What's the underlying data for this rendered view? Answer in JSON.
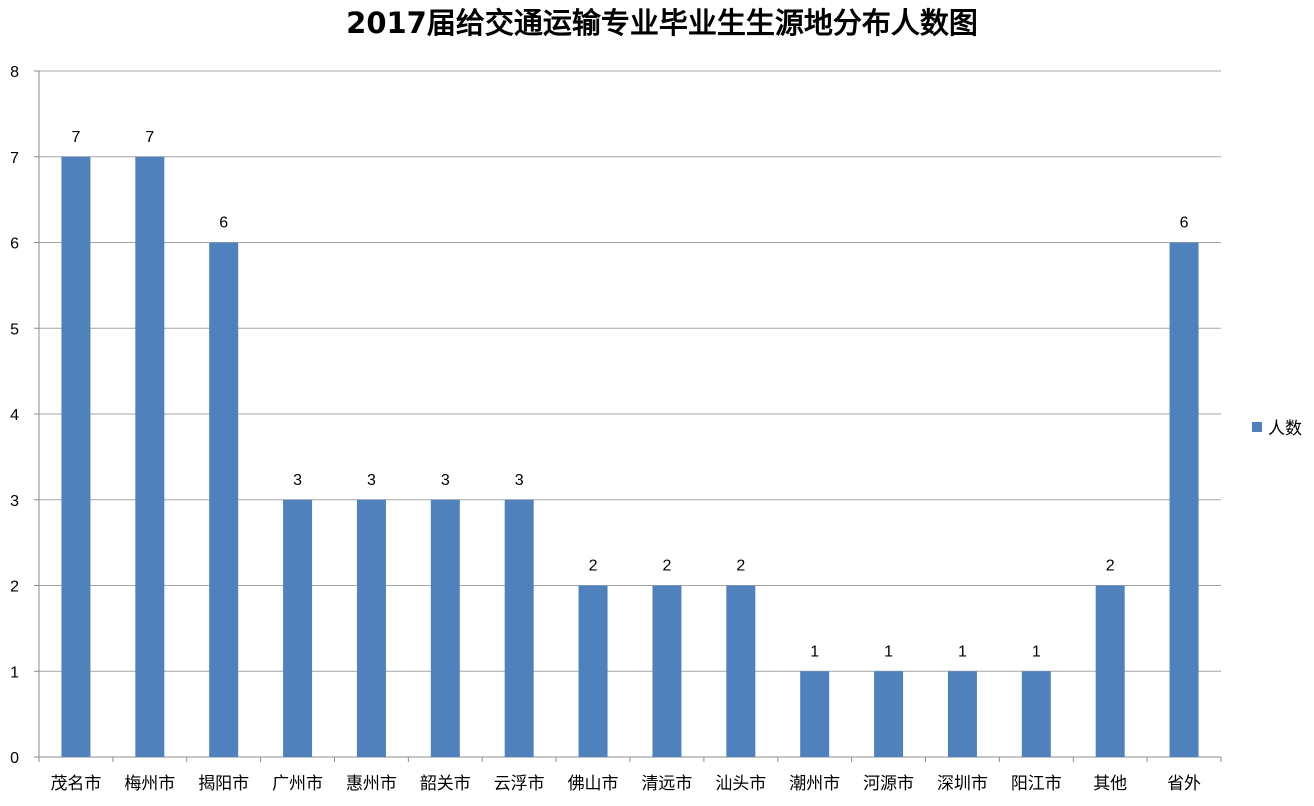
{
  "chart_data": {
    "type": "bar",
    "title": "2017届给交通运输专业毕业生生源地分布人数图",
    "xlabel": "",
    "ylabel": "",
    "categories": [
      "茂名市",
      "梅州市",
      "揭阳市",
      "广州市",
      "惠州市",
      "韶关市",
      "云浮市",
      "佛山市",
      "清远市",
      "汕头市",
      "潮州市",
      "河源市",
      "深圳市",
      "阳江市",
      "其他",
      "省外"
    ],
    "series": [
      {
        "name": "人数",
        "values": [
          7,
          7,
          6,
          3,
          3,
          3,
          3,
          2,
          2,
          2,
          1,
          1,
          1,
          1,
          2,
          6
        ]
      }
    ],
    "ylim": [
      0,
      8
    ],
    "yticks": [
      "0",
      "1",
      "2",
      "3",
      "4",
      "5",
      "6",
      "7",
      "8"
    ],
    "grid": true,
    "legend_position": "right",
    "colors": {
      "bar": "#4F81BD",
      "grid": "#A6A6A6",
      "axis": "#8C8C8C"
    }
  }
}
